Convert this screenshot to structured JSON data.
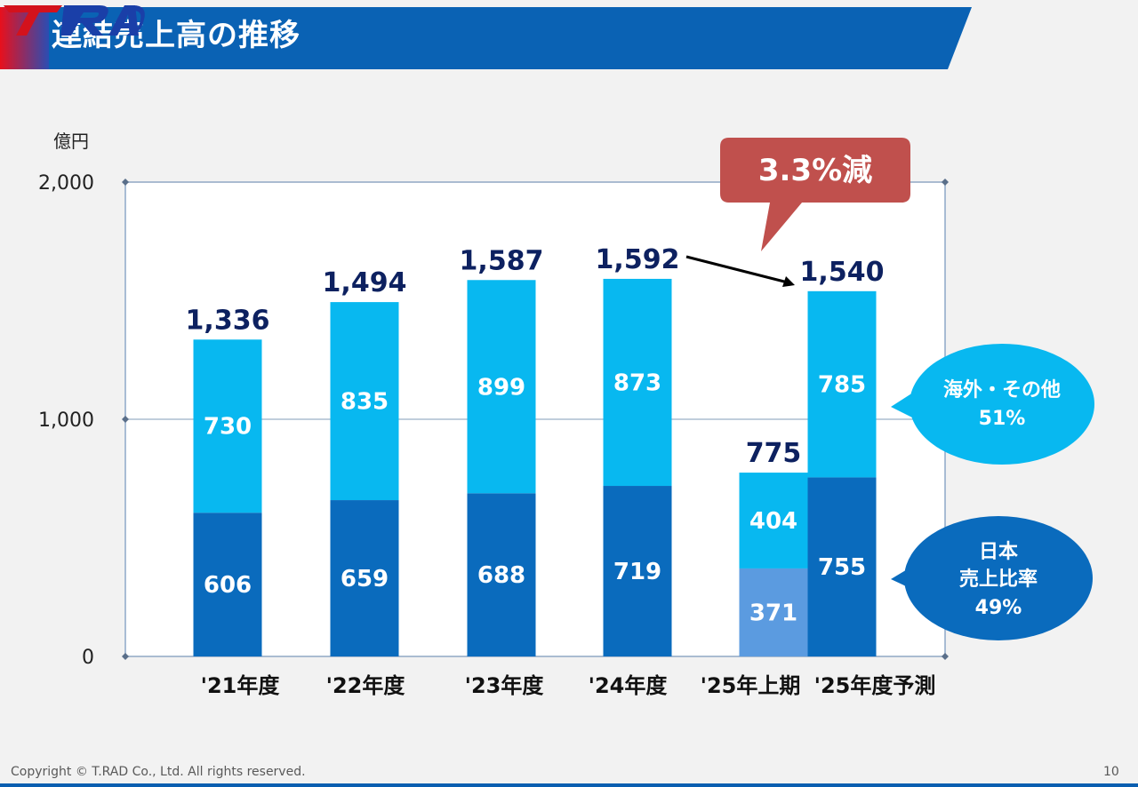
{
  "header": {
    "title": "連結売上高の推移",
    "logo_text": "T.RAD"
  },
  "colors": {
    "header_blue": "#0a62b4",
    "overseas": "#08b8f0",
    "japan": "#0a6bbd",
    "half_japan": "#5b9be0",
    "callout_red": "#c0504d",
    "total_label": "#0d2160"
  },
  "chart_data": {
    "type": "bar",
    "stacked": true,
    "unit_label": "億円",
    "ylim": [
      0,
      2000
    ],
    "yticks": [
      {
        "value": 0,
        "label": "0"
      },
      {
        "value": 1000,
        "label": "1,000"
      },
      {
        "value": 2000,
        "label": "2,000"
      }
    ],
    "categories": [
      "'21年度",
      "'22年度",
      "'23年度",
      "'24年度",
      "'25年上期",
      "'25年度予測"
    ],
    "series": [
      {
        "name": "日本",
        "values": [
          606,
          659,
          688,
          719,
          371,
          755
        ],
        "labels": [
          "606",
          "659",
          "688",
          "719",
          "371",
          "755"
        ]
      },
      {
        "name": "海外・その他",
        "values": [
          730,
          835,
          899,
          873,
          404,
          785
        ],
        "labels": [
          "730",
          "835",
          "899",
          "873",
          "404",
          "785"
        ]
      }
    ],
    "totals": [
      1336,
      1494,
      1587,
      1592,
      775,
      1540
    ],
    "total_labels": [
      "1,336",
      "1,494",
      "1,587",
      "1,592",
      "775",
      "1,540"
    ],
    "change_callout": "3.3%減",
    "legend_overseas": [
      "海外・その他",
      "51%"
    ],
    "legend_japan": [
      "日本",
      "売上比率",
      "49%"
    ]
  },
  "footer": {
    "copyright": "Copyright © T.RAD Co., Ltd. All rights reserved.",
    "page": "10"
  }
}
